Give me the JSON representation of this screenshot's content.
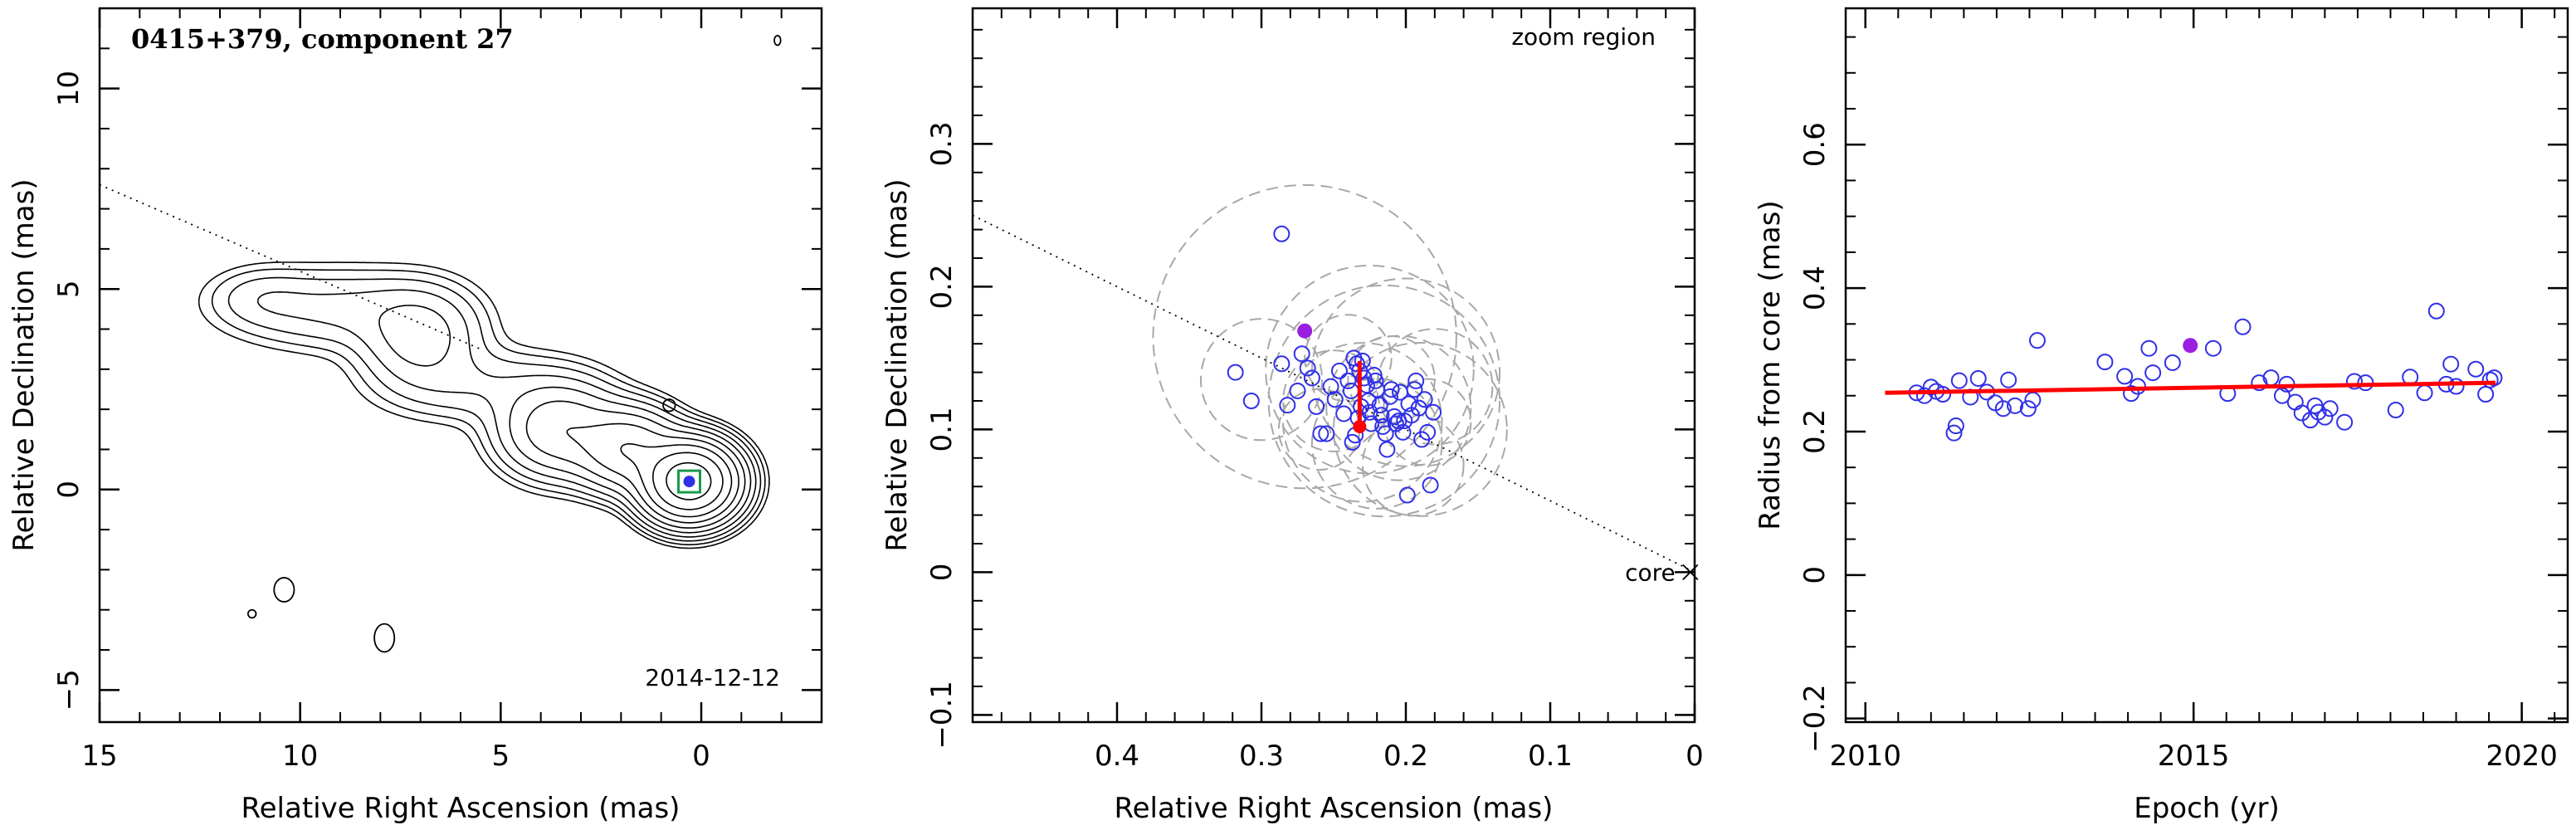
{
  "chart_data": [
    {
      "type": "contour",
      "title": "0415+379, component 27",
      "epoch_label": "2014-12-12",
      "xlabel": "Relative Right Ascension (mas)",
      "ylabel": "Relative Declination (mas)",
      "xlim": [
        15,
        -3
      ],
      "ylim": [
        -5.8,
        12
      ],
      "xticks": [
        15,
        10,
        5,
        0
      ],
      "yticks": [
        -5,
        0,
        5,
        10
      ],
      "jet_axis_line": [
        [
          15,
          7.6
        ],
        [
          5.5,
          3.5
        ]
      ],
      "core_marker": [
        0.3,
        0.2
      ],
      "contour_levels": 11,
      "jet_knots": [
        {
          "x": 0.3,
          "y": 0.2,
          "sx": 0.6,
          "sy": 0.5,
          "peak": 1.0
        },
        {
          "x": 1.8,
          "y": 1.0,
          "sx": 0.7,
          "sy": 0.55,
          "peak": 0.2
        },
        {
          "x": 3.5,
          "y": 1.5,
          "sx": 0.85,
          "sy": 0.65,
          "peak": 0.11
        },
        {
          "x": 7.0,
          "y": 3.8,
          "sx": 0.85,
          "sy": 0.7,
          "peak": 0.05
        },
        {
          "x": 9.0,
          "y": 4.5,
          "sx": 1.6,
          "sy": 0.6,
          "peak": 0.025
        },
        {
          "x": 5.5,
          "y": 2.6,
          "sx": 1.5,
          "sy": 0.55,
          "peak": 0.02
        },
        {
          "x": 11.0,
          "y": 4.8,
          "sx": 0.8,
          "sy": 0.45,
          "peak": 0.012
        }
      ],
      "isolated_contours": [
        {
          "x": 10.4,
          "y": -2.5,
          "rx": 0.25,
          "ry": 0.3
        },
        {
          "x": 11.2,
          "y": -3.1,
          "rx": 0.1,
          "ry": 0.1
        },
        {
          "x": 7.9,
          "y": -3.7,
          "rx": 0.25,
          "ry": 0.35
        },
        {
          "x": 0.8,
          "y": 2.1,
          "rx": 0.15,
          "ry": 0.15
        },
        {
          "x": -1.9,
          "y": 11.2,
          "rx": 0.08,
          "ry": 0.12
        }
      ]
    },
    {
      "type": "scatter",
      "annotation": "zoom region",
      "core_label": "core",
      "xlabel": "Relative Right Ascension (mas)",
      "ylabel": "Relative Declination (mas)",
      "xlim": [
        0.5,
        0
      ],
      "ylim": [
        -0.105,
        0.395
      ],
      "xticks": [
        0.4,
        0.3,
        0.2,
        0.1,
        0
      ],
      "yticks": [
        -0.1,
        0,
        0.1,
        0.2,
        0.3
      ],
      "jet_axis_line": [
        [
          0.5,
          0.25
        ],
        [
          0,
          0
        ]
      ],
      "points": [
        [
          0.286,
          0.237
        ],
        [
          0.318,
          0.14
        ],
        [
          0.307,
          0.12
        ],
        [
          0.286,
          0.146
        ],
        [
          0.282,
          0.117
        ],
        [
          0.275,
          0.127
        ],
        [
          0.272,
          0.153
        ],
        [
          0.268,
          0.143
        ],
        [
          0.265,
          0.136
        ],
        [
          0.262,
          0.116
        ],
        [
          0.259,
          0.097
        ],
        [
          0.255,
          0.097
        ],
        [
          0.252,
          0.13
        ],
        [
          0.249,
          0.121
        ],
        [
          0.246,
          0.141
        ],
        [
          0.243,
          0.111
        ],
        [
          0.24,
          0.134
        ],
        [
          0.238,
          0.127
        ],
        [
          0.236,
          0.15
        ],
        [
          0.234,
          0.146
        ],
        [
          0.232,
          0.141
        ],
        [
          0.23,
          0.148
        ],
        [
          0.229,
          0.136
        ],
        [
          0.227,
          0.131
        ],
        [
          0.226,
          0.12
        ],
        [
          0.225,
          0.112
        ],
        [
          0.224,
          0.104
        ],
        [
          0.222,
          0.138
        ],
        [
          0.221,
          0.134
        ],
        [
          0.22,
          0.128
        ],
        [
          0.218,
          0.117
        ],
        [
          0.217,
          0.11
        ],
        [
          0.216,
          0.102
        ],
        [
          0.214,
          0.097
        ],
        [
          0.213,
          0.086
        ],
        [
          0.211,
          0.123
        ],
        [
          0.21,
          0.128
        ],
        [
          0.208,
          0.109
        ],
        [
          0.207,
          0.104
        ],
        [
          0.205,
          0.106
        ],
        [
          0.204,
          0.126
        ],
        [
          0.202,
          0.098
        ],
        [
          0.201,
          0.106
        ],
        [
          0.199,
          0.054
        ],
        [
          0.198,
          0.118
        ],
        [
          0.196,
          0.11
        ],
        [
          0.194,
          0.128
        ],
        [
          0.193,
          0.134
        ],
        [
          0.191,
          0.115
        ],
        [
          0.189,
          0.093
        ],
        [
          0.187,
          0.121
        ],
        [
          0.185,
          0.098
        ],
        [
          0.183,
          0.061
        ],
        [
          0.181,
          0.112
        ],
        [
          0.237,
          0.091
        ],
        [
          0.235,
          0.096
        ],
        [
          0.233,
          0.108
        ],
        [
          0.231,
          0.116
        ]
      ],
      "highlight_point": [
        0.27,
        0.169
      ],
      "red_error_bar": {
        "x": 0.232,
        "y1": 0.102,
        "y2": 0.148
      },
      "gray_circles": [
        {
          "x": 0.27,
          "y": 0.165,
          "r": 0.105
        },
        {
          "x": 0.225,
          "y": 0.142,
          "r": 0.072
        },
        {
          "x": 0.3,
          "y": 0.135,
          "r": 0.042
        },
        {
          "x": 0.205,
          "y": 0.115,
          "r": 0.05
        },
        {
          "x": 0.25,
          "y": 0.12,
          "r": 0.035
        },
        {
          "x": 0.19,
          "y": 0.1,
          "r": 0.06
        },
        {
          "x": 0.22,
          "y": 0.09,
          "r": 0.045
        },
        {
          "x": 0.24,
          "y": 0.15,
          "r": 0.03
        },
        {
          "x": 0.18,
          "y": 0.13,
          "r": 0.04
        },
        {
          "x": 0.21,
          "y": 0.135,
          "r": 0.03
        },
        {
          "x": 0.23,
          "y": 0.105,
          "r": 0.055
        },
        {
          "x": 0.195,
          "y": 0.075,
          "r": 0.035
        },
        {
          "x": 0.26,
          "y": 0.1,
          "r": 0.028
        },
        {
          "x": 0.2,
          "y": 0.14,
          "r": 0.065
        },
        {
          "x": 0.215,
          "y": 0.12,
          "r": 0.08
        },
        {
          "x": 0.185,
          "y": 0.105,
          "r": 0.03
        }
      ]
    },
    {
      "type": "scatter",
      "xlabel": "Epoch (yr)",
      "ylabel": "Radius from core (mas)",
      "xlim": [
        2009.7,
        2020.7
      ],
      "ylim": [
        -0.205,
        0.79
      ],
      "xticks": [
        2010,
        2015,
        2020
      ],
      "yticks": [
        -0.2,
        0,
        0.2,
        0.4,
        0.6
      ],
      "points": [
        [
          2010.78,
          0.254
        ],
        [
          2010.9,
          0.25
        ],
        [
          2011.0,
          0.262
        ],
        [
          2011.08,
          0.256
        ],
        [
          2011.18,
          0.252
        ],
        [
          2011.35,
          0.198
        ],
        [
          2011.38,
          0.208
        ],
        [
          2011.43,
          0.271
        ],
        [
          2011.6,
          0.248
        ],
        [
          2011.72,
          0.274
        ],
        [
          2011.85,
          0.255
        ],
        [
          2011.98,
          0.24
        ],
        [
          2012.1,
          0.232
        ],
        [
          2012.18,
          0.272
        ],
        [
          2012.28,
          0.236
        ],
        [
          2012.48,
          0.232
        ],
        [
          2012.55,
          0.244
        ],
        [
          2012.62,
          0.327
        ],
        [
          2013.65,
          0.297
        ],
        [
          2013.95,
          0.277
        ],
        [
          2014.05,
          0.253
        ],
        [
          2014.15,
          0.263
        ],
        [
          2014.32,
          0.316
        ],
        [
          2014.38,
          0.282
        ],
        [
          2014.68,
          0.296
        ],
        [
          2015.3,
          0.316
        ],
        [
          2015.52,
          0.253
        ],
        [
          2015.75,
          0.346
        ],
        [
          2016.0,
          0.268
        ],
        [
          2016.18,
          0.275
        ],
        [
          2016.35,
          0.25
        ],
        [
          2016.42,
          0.266
        ],
        [
          2016.55,
          0.241
        ],
        [
          2016.65,
          0.226
        ],
        [
          2016.78,
          0.216
        ],
        [
          2016.85,
          0.236
        ],
        [
          2016.9,
          0.227
        ],
        [
          2017.0,
          0.22
        ],
        [
          2017.08,
          0.232
        ],
        [
          2017.3,
          0.213
        ],
        [
          2017.45,
          0.27
        ],
        [
          2017.62,
          0.268
        ],
        [
          2018.08,
          0.23
        ],
        [
          2018.3,
          0.276
        ],
        [
          2018.52,
          0.254
        ],
        [
          2018.7,
          0.368
        ],
        [
          2018.85,
          0.266
        ],
        [
          2018.92,
          0.294
        ],
        [
          2019.0,
          0.263
        ],
        [
          2019.3,
          0.287
        ],
        [
          2019.45,
          0.252
        ],
        [
          2019.52,
          0.272
        ],
        [
          2019.58,
          0.275
        ]
      ],
      "highlight_point": [
        2014.95,
        0.32
      ],
      "fit_line": [
        [
          2010.3,
          0.254
        ],
        [
          2019.6,
          0.268
        ]
      ]
    }
  ],
  "colors": {
    "points": "#3030e8",
    "highlight": "#9a1fe0",
    "fit": "#ff0000",
    "circles": "#a8a8a8",
    "core_box": "#1a9a4a"
  }
}
